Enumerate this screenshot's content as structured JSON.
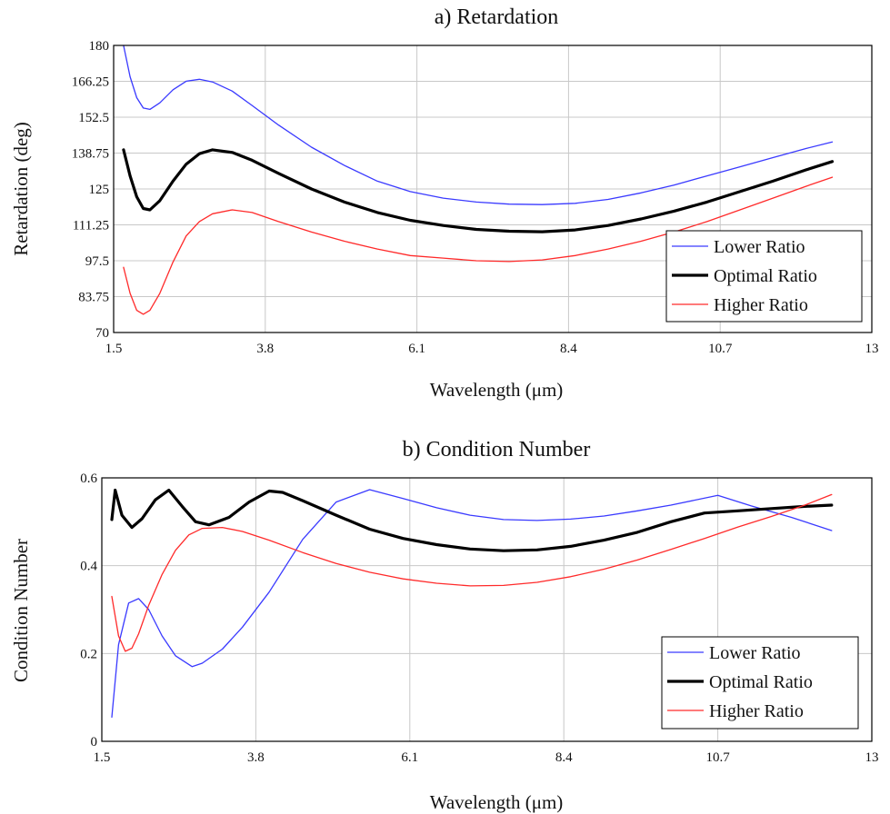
{
  "colors": {
    "lower": "#3a3aff",
    "optimal": "#000000",
    "higher": "#ff2a2a",
    "grid": "#c8c8c8"
  },
  "chart_data": [
    {
      "type": "line",
      "title": "a) Retardation",
      "xlabel": "Wavelength (μm)",
      "ylabel": "Retardation (deg)",
      "xlim": [
        1.5,
        13
      ],
      "ylim": [
        70,
        180
      ],
      "xticks": [
        "1.5",
        "3.8",
        "6.1",
        "8.4",
        "10.7",
        "13"
      ],
      "yticks": [
        "70",
        "83.75",
        "97.5",
        "111.25",
        "125",
        "138.75",
        "152.5",
        "166.25",
        "180"
      ],
      "grid": true,
      "legend": "bottom-right",
      "series": [
        {
          "name": "Lower Ratio",
          "color": "#3a3aff",
          "width": 1.3,
          "x": [
            1.65,
            1.75,
            1.85,
            1.95,
            2.05,
            2.2,
            2.4,
            2.6,
            2.8,
            3.0,
            3.3,
            3.6,
            4.0,
            4.5,
            5.0,
            5.5,
            6.0,
            6.5,
            7.0,
            7.5,
            8.0,
            8.5,
            9.0,
            9.5,
            10.0,
            10.5,
            11.0,
            11.5,
            12.0,
            12.4
          ],
          "y": [
            180,
            168,
            160,
            156,
            155.5,
            158,
            163,
            166.3,
            167,
            166,
            162.5,
            157,
            149.5,
            141,
            134,
            128,
            124,
            121.5,
            120,
            119.2,
            119,
            119.5,
            121,
            123.5,
            126.5,
            130,
            133.5,
            137,
            140.5,
            143
          ]
        },
        {
          "name": "Optimal Ratio",
          "color": "#000000",
          "width": 3.2,
          "x": [
            1.65,
            1.75,
            1.85,
            1.95,
            2.05,
            2.2,
            2.4,
            2.6,
            2.8,
            3.0,
            3.3,
            3.6,
            4.0,
            4.5,
            5.0,
            5.5,
            6.0,
            6.5,
            7.0,
            7.5,
            8.0,
            8.5,
            9.0,
            9.5,
            10.0,
            10.5,
            11.0,
            11.5,
            12.0,
            12.4
          ],
          "y": [
            140,
            130,
            122,
            117.5,
            117,
            120.5,
            128,
            134.5,
            138.5,
            140,
            139,
            136,
            131,
            125,
            120,
            116,
            113,
            111,
            109.5,
            108.8,
            108.6,
            109.3,
            111,
            113.5,
            116.5,
            120,
            124,
            128,
            132.3,
            135.5
          ]
        },
        {
          "name": "Higher Ratio",
          "color": "#ff2a2a",
          "width": 1.3,
          "x": [
            1.65,
            1.75,
            1.85,
            1.95,
            2.05,
            2.2,
            2.4,
            2.6,
            2.8,
            3.0,
            3.3,
            3.6,
            4.0,
            4.5,
            5.0,
            5.5,
            6.0,
            6.5,
            7.0,
            7.5,
            8.0,
            8.5,
            9.0,
            9.5,
            10.0,
            10.5,
            11.0,
            11.5,
            12.0,
            12.4
          ],
          "y": [
            95,
            85,
            78.5,
            77,
            78.5,
            85,
            97,
            107,
            112.5,
            115.5,
            117,
            116,
            112.5,
            108.5,
            105,
            102,
            99.5,
            98.5,
            97.5,
            97.2,
            97.8,
            99.5,
            102,
            105,
            108.5,
            112.5,
            117,
            121.5,
            126,
            129.5
          ]
        }
      ]
    },
    {
      "type": "line",
      "title": "b) Condition Number",
      "xlabel": "Wavelength (μm)",
      "ylabel": "Condition Number",
      "xlim": [
        1.5,
        13
      ],
      "ylim": [
        0,
        0.6
      ],
      "xticks": [
        "1.5",
        "3.8",
        "6.1",
        "8.4",
        "10.7",
        "13"
      ],
      "yticks": [
        "0",
        "0.2",
        "0.4",
        "0.6"
      ],
      "grid": true,
      "legend": "bottom-right",
      "series": [
        {
          "name": "Lower Ratio",
          "color": "#3a3aff",
          "width": 1.3,
          "x": [
            1.65,
            1.75,
            1.9,
            2.05,
            2.2,
            2.4,
            2.6,
            2.85,
            3.0,
            3.3,
            3.6,
            4.0,
            4.5,
            5.0,
            5.5,
            6.0,
            6.5,
            7.0,
            7.5,
            8.0,
            8.5,
            9.0,
            9.5,
            10.0,
            10.7,
            11.2,
            11.8,
            12.4
          ],
          "y": [
            0.055,
            0.22,
            0.315,
            0.325,
            0.3,
            0.24,
            0.195,
            0.17,
            0.178,
            0.21,
            0.26,
            0.34,
            0.46,
            0.545,
            0.573,
            0.553,
            0.532,
            0.515,
            0.505,
            0.503,
            0.506,
            0.513,
            0.525,
            0.538,
            0.56,
            0.536,
            0.51,
            0.48
          ]
        },
        {
          "name": "Optimal Ratio",
          "color": "#000000",
          "width": 3.2,
          "x": [
            1.65,
            1.7,
            1.8,
            1.95,
            2.1,
            2.3,
            2.5,
            2.7,
            2.9,
            3.1,
            3.4,
            3.7,
            4.0,
            4.2,
            4.5,
            5.0,
            5.5,
            6.0,
            6.5,
            7.0,
            7.5,
            8.0,
            8.5,
            9.0,
            9.5,
            10.0,
            10.5,
            11.0,
            11.5,
            12.0,
            12.4
          ],
          "y": [
            0.505,
            0.572,
            0.515,
            0.487,
            0.507,
            0.55,
            0.572,
            0.535,
            0.5,
            0.493,
            0.51,
            0.545,
            0.57,
            0.567,
            0.548,
            0.515,
            0.483,
            0.462,
            0.448,
            0.438,
            0.434,
            0.436,
            0.444,
            0.458,
            0.476,
            0.5,
            0.52,
            0.525,
            0.53,
            0.535,
            0.538
          ]
        },
        {
          "name": "Higher Ratio",
          "color": "#ff2a2a",
          "width": 1.3,
          "x": [
            1.65,
            1.75,
            1.85,
            1.95,
            2.05,
            2.2,
            2.4,
            2.6,
            2.8,
            3.0,
            3.3,
            3.6,
            4.0,
            4.5,
            5.0,
            5.5,
            6.0,
            6.5,
            7.0,
            7.5,
            8.0,
            8.5,
            9.0,
            9.5,
            10.0,
            10.5,
            11.0,
            11.5,
            12.0,
            12.4
          ],
          "y": [
            0.33,
            0.24,
            0.205,
            0.212,
            0.245,
            0.31,
            0.38,
            0.435,
            0.47,
            0.485,
            0.487,
            0.478,
            0.458,
            0.43,
            0.405,
            0.385,
            0.37,
            0.36,
            0.354,
            0.355,
            0.362,
            0.375,
            0.392,
            0.413,
            0.437,
            0.462,
            0.488,
            0.512,
            0.538,
            0.562
          ]
        }
      ]
    }
  ]
}
